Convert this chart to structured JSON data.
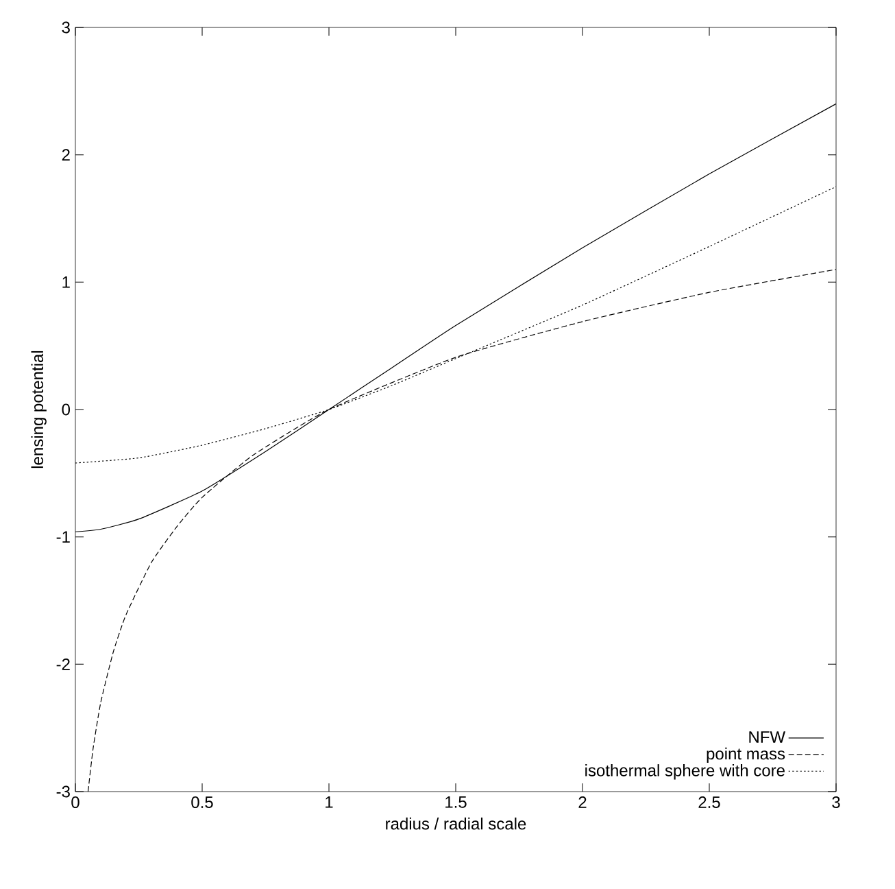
{
  "chart_data": {
    "type": "line",
    "xlabel": "radius / radial scale",
    "ylabel": "lensing potential",
    "xlim": [
      0,
      3
    ],
    "ylim": [
      -3,
      3
    ],
    "xticks": [
      0,
      0.5,
      1,
      1.5,
      2,
      2.5,
      3
    ],
    "yticks": [
      -3,
      -2,
      -1,
      0,
      1,
      2,
      3
    ],
    "grid": false,
    "legend": "bottom right",
    "marker": "none",
    "series": [
      {
        "name": "NFW",
        "color": "#000000",
        "line_style": "solid",
        "x": [
          0,
          0.1,
          0.25,
          0.5,
          0.75,
          1.0,
          1.25,
          1.5,
          2.0,
          2.5,
          3.0
        ],
        "values": [
          -0.96,
          -0.94,
          -0.86,
          -0.64,
          -0.33,
          0.0,
          0.33,
          0.66,
          1.27,
          1.85,
          2.4
        ]
      },
      {
        "name": "point mass",
        "color": "#000000",
        "line_style": "dashed",
        "x": [
          0.05,
          0.07,
          0.1,
          0.15,
          0.2,
          0.3,
          0.4,
          0.5,
          0.7,
          1.0,
          1.5,
          2.0,
          2.5,
          3.0
        ],
        "values": [
          -3.0,
          -2.66,
          -2.3,
          -1.9,
          -1.61,
          -1.2,
          -0.92,
          -0.69,
          -0.36,
          0.0,
          0.41,
          0.69,
          0.92,
          1.1
        ]
      },
      {
        "name": "isothermal sphere with core",
        "color": "#000000",
        "line_style": "dotted",
        "x": [
          0,
          0.25,
          0.5,
          0.75,
          1.0,
          1.25,
          1.5,
          2.0,
          2.5,
          3.0
        ],
        "values": [
          -0.42,
          -0.38,
          -0.28,
          -0.15,
          0.0,
          0.19,
          0.4,
          0.82,
          1.28,
          1.75
        ]
      }
    ]
  }
}
